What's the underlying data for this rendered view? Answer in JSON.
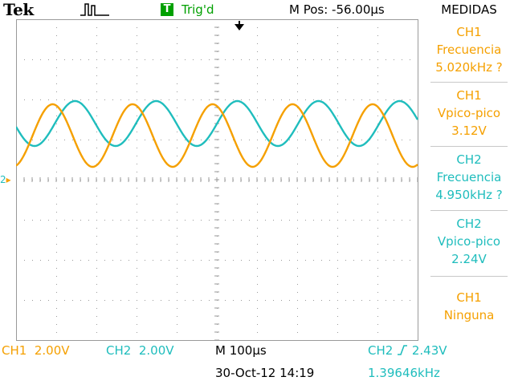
{
  "header": {
    "brand": "Tek",
    "trigger_icon_letter": "T",
    "trigger_status": "Trig'd",
    "m_pos": "M Pos: -56.00µs",
    "measure_title": "MEDIDAS"
  },
  "colors": {
    "ch1": "#f5a000",
    "ch2": "#1fbdbd",
    "trigger": "#00a000",
    "grid": "#9a9a9a"
  },
  "measurements": [
    {
      "channel": "CH1",
      "type": "Frecuencia",
      "value": "5.020kHz ?"
    },
    {
      "channel": "CH1",
      "type": "Vpico-pico",
      "value": "3.12V"
    },
    {
      "channel": "CH2",
      "type": "Frecuencia",
      "value": "4.950kHz ?"
    },
    {
      "channel": "CH2",
      "type": "Vpico-pico",
      "value": "2.24V"
    },
    {
      "channel": "CH1",
      "type": "Ninguna",
      "value": ""
    }
  ],
  "footer": {
    "ch1_label": "CH1",
    "ch1_scale": "2.00V",
    "ch2_label": "CH2",
    "ch2_scale": "2.00V",
    "timebase": "M 100µs",
    "datetime": "30-Oct-12 14:19",
    "trigger_source": "CH2",
    "trigger_slope_icon": "rising-edge-icon",
    "trigger_level": "2.43V",
    "trigger_frequency": "1.39646kHz"
  },
  "chart_data": {
    "type": "line",
    "x_unit": "div",
    "y_unit": "div",
    "xlim": [
      0,
      10
    ],
    "ylim": [
      -4,
      4
    ],
    "grid": true,
    "ground_marker": "2",
    "series": [
      {
        "name": "CH1",
        "frequency_cycles_per_div": 0.502,
        "center_div": 1.1,
        "amplitude_div": 0.78,
        "phase_rad": -1.3
      },
      {
        "name": "CH2",
        "frequency_cycles_per_div": 0.495,
        "center_div": 1.4,
        "amplitude_div": 0.56,
        "phase_rad": -3.0
      }
    ]
  }
}
